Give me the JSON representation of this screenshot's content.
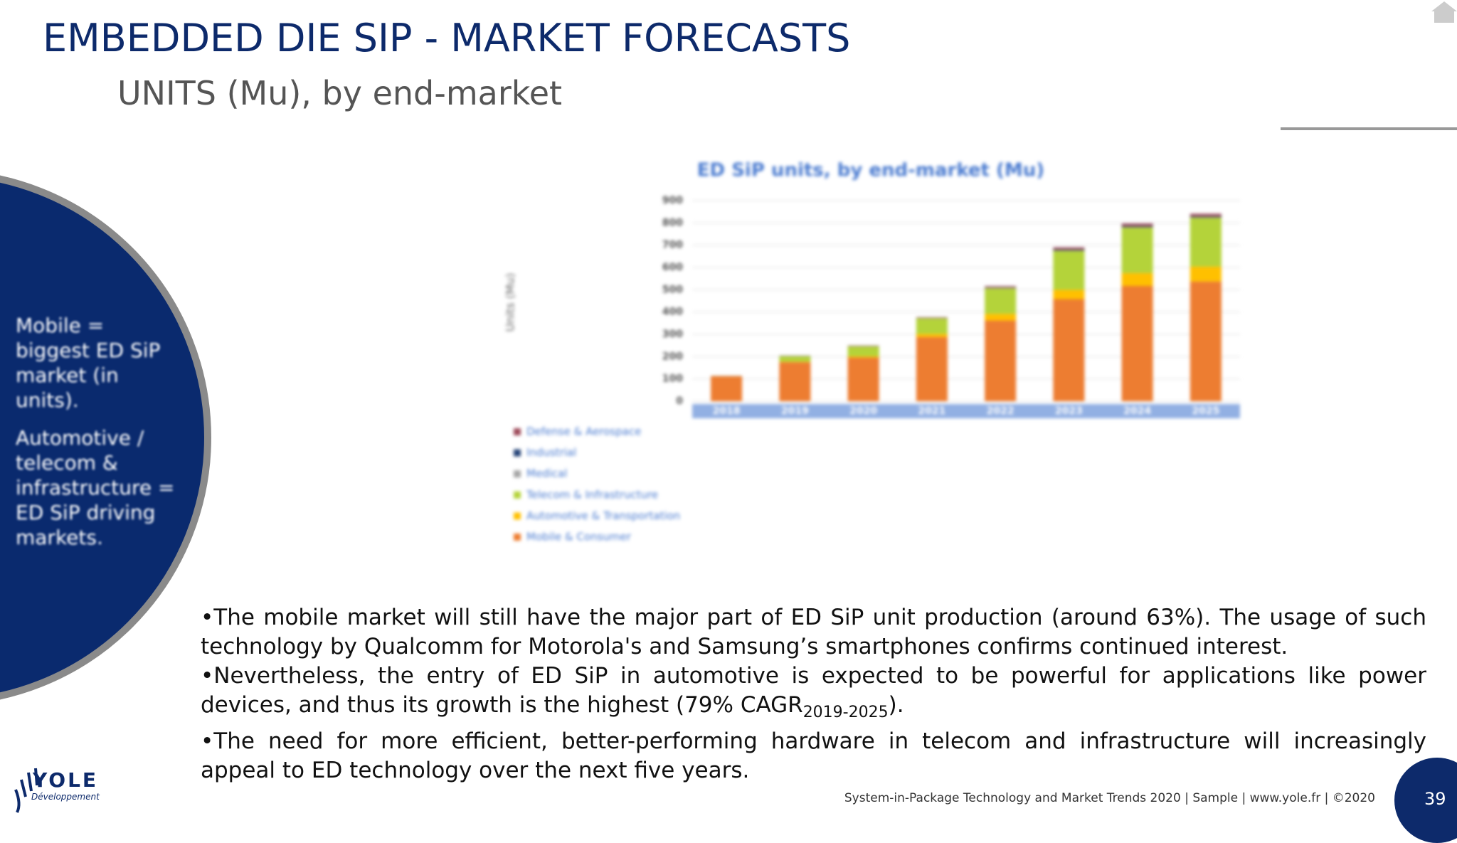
{
  "header": {
    "title": "EMBEDDED DIE SIP - MARKET FORECASTS",
    "subtitle": "UNITS (Mu), by end-market"
  },
  "sidebar": {
    "points": [
      "Mobile = biggest ED SiP market (in units).",
      "Automotive / telecom & infrastructure = ED SiP driving markets."
    ]
  },
  "chart_data": {
    "type": "bar",
    "stacked": true,
    "title": "ED SiP units, by end-market (Mu)",
    "y_label": "Units (Mu)",
    "categories": [
      "2018",
      "2019",
      "2020",
      "2021",
      "2022",
      "2023",
      "2024",
      "2025"
    ],
    "series": [
      {
        "name": "Mobile & Consumer",
        "color": "#ed7d31",
        "values": [
          112,
          175,
          196,
          288,
          362,
          458,
          517,
          537
        ]
      },
      {
        "name": "Automotive & Transportation",
        "color": "#ffc000",
        "values": [
          0,
          2,
          5,
          14,
          30,
          42,
          58,
          67
        ]
      },
      {
        "name": "Telecom & Infrastructure",
        "color": "#b4d33a",
        "values": [
          1,
          25,
          45,
          70,
          115,
          175,
          205,
          220
        ]
      },
      {
        "name": "Medical",
        "color": "#a5a5a5",
        "values": [
          0,
          1,
          1,
          1,
          1,
          1,
          1,
          1
        ]
      },
      {
        "name": "Industrial",
        "color": "#264478",
        "values": [
          0,
          1,
          1,
          1,
          2,
          4,
          4,
          4
        ]
      },
      {
        "name": "Defense & Aerospace",
        "color": "#9e4a5a",
        "values": [
          1,
          1,
          2,
          3,
          6,
          10,
          12,
          12
        ]
      }
    ],
    "ylim": [
      0,
      900
    ],
    "yticks": [
      0,
      100,
      200,
      300,
      400,
      500,
      600,
      700,
      800,
      900
    ],
    "grid": true
  },
  "body": {
    "paragraphs": [
      "•The mobile market will still have the major part of ED SiP unit production (around 63%). The usage of such technology by Qualcomm for Motorola's and Samsung’s smartphones confirms continued interest.",
      {
        "text": "•Nevertheless, the entry of ED SiP in automotive is expected to be powerful for applications like power devices, and thus its growth is the highest (79% CAGR",
        "sub": "2019-2025",
        "tail": ")."
      },
      "•The need for more efficient, better-performing hardware in telecom and infrastructure will increasingly appeal to ED technology over the next five years."
    ]
  },
  "logo": {
    "name": "YOLE",
    "tagline": "Développement"
  },
  "footer": {
    "text": "System-in-Package Technology and Market Trends 2020 | Sample | www.yole.fr | ©2020",
    "page": "39"
  }
}
